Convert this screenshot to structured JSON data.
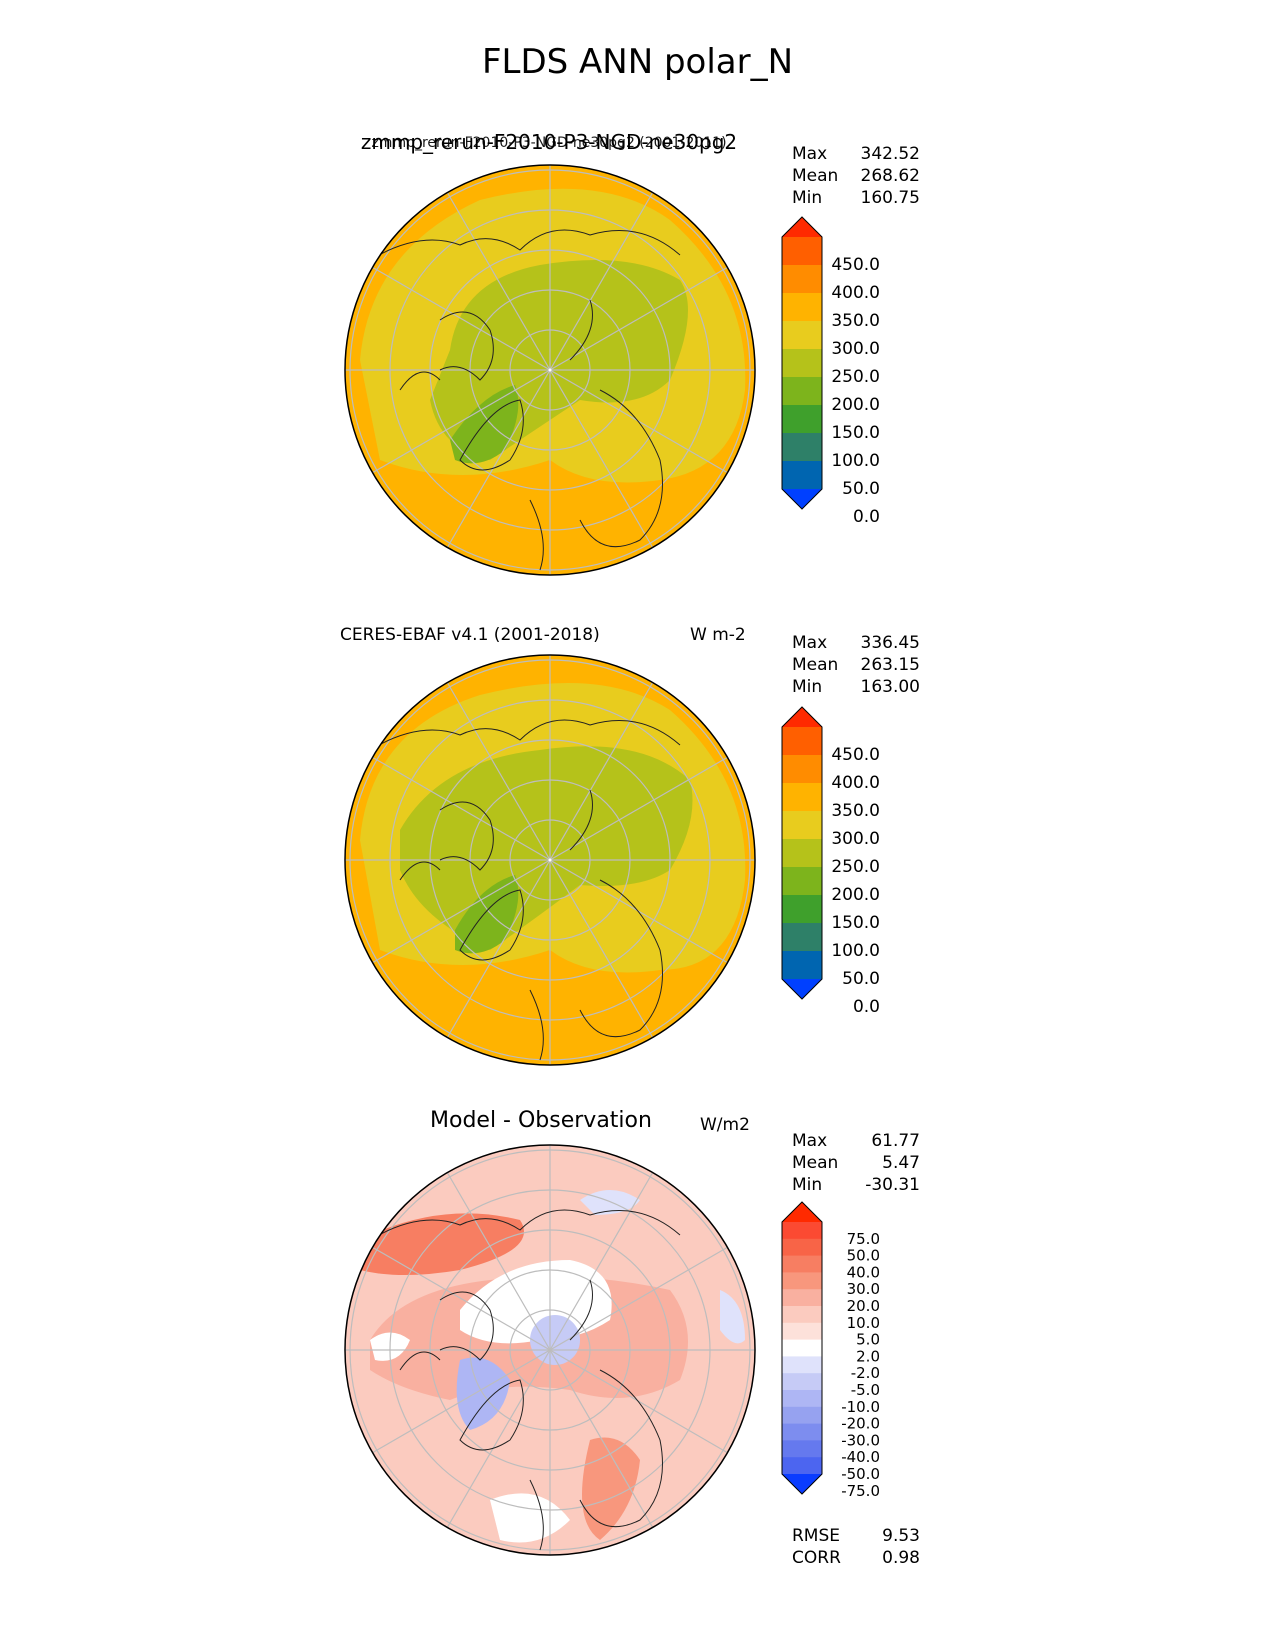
{
  "figure": {
    "title": "FLDS ANN polar_N"
  },
  "panels": [
    {
      "title": "zmmp_rerun-F2010-P3-NGD-ne30pg2",
      "subtitle": "zmmp_rerun-F2010-P3-NGD-ne30pg2 (2001-2011)",
      "units": "",
      "stats": [
        {
          "label": "Max",
          "value": "342.52"
        },
        {
          "label": "Mean",
          "value": "268.62"
        },
        {
          "label": "Min",
          "value": "160.75"
        }
      ],
      "colorbar": {
        "ticks": [
          "450.0",
          "400.0",
          "350.0",
          "300.0",
          "250.0",
          "200.0",
          "150.0",
          "100.0",
          "50.0",
          "0.0"
        ],
        "colors": [
          "#ff2a00",
          "#ff5f00",
          "#ff8c00",
          "#ffb300",
          "#e8cc1e",
          "#b5c21a",
          "#7db41c",
          "#3fa02c",
          "#2e8068",
          "#0065b0",
          "#0040ff"
        ]
      }
    },
    {
      "title": "CERES-EBAF v4.1 (2001-2018)",
      "units": "W m-2",
      "stats": [
        {
          "label": "Max",
          "value": "336.45"
        },
        {
          "label": "Mean",
          "value": "263.15"
        },
        {
          "label": "Min",
          "value": "163.00"
        }
      ],
      "colorbar": {
        "ticks": [
          "450.0",
          "400.0",
          "350.0",
          "300.0",
          "250.0",
          "200.0",
          "150.0",
          "100.0",
          "50.0",
          "0.0"
        ],
        "colors": [
          "#ff2a00",
          "#ff5f00",
          "#ff8c00",
          "#ffb300",
          "#e8cc1e",
          "#b5c21a",
          "#7db41c",
          "#3fa02c",
          "#2e8068",
          "#0065b0",
          "#0040ff"
        ]
      }
    },
    {
      "title": "Model - Observation",
      "units": "W/m2",
      "stats": [
        {
          "label": "Max",
          "value": "61.77"
        },
        {
          "label": "Mean",
          "value": "5.47"
        },
        {
          "label": "Min",
          "value": "-30.31"
        }
      ],
      "metrics": [
        {
          "label": "RMSE",
          "value": "9.53"
        },
        {
          "label": "CORR",
          "value": "0.98"
        }
      ],
      "colorbar": {
        "ticks": [
          "75.0",
          "50.0",
          "40.0",
          "30.0",
          "20.0",
          "10.0",
          "5.0",
          "2.0",
          "-2.0",
          "-5.0",
          "-10.0",
          "-20.0",
          "-30.0",
          "-40.0",
          "-50.0",
          "-75.0"
        ],
        "colors": [
          "#ff2a00",
          "#fb4a32",
          "#f86447",
          "#f77e62",
          "#f8977d",
          "#f9b0a0",
          "#fbcbbf",
          "#fde1da",
          "#ffffff",
          "#dfe2fb",
          "#c6cbf6",
          "#aeb6f4",
          "#96a2f0",
          "#7d8def",
          "#6579ee",
          "#4c65f0",
          "#0a3cff"
        ]
      }
    }
  ]
}
